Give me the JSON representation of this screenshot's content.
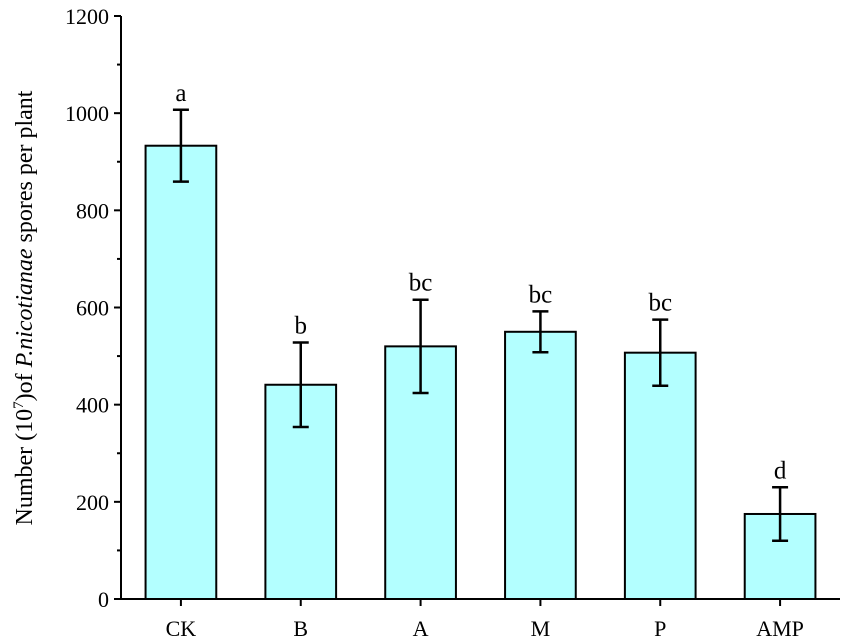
{
  "chart_data": {
    "type": "bar",
    "categories": [
      "CK",
      "B",
      "A",
      "M",
      "P",
      "AMP"
    ],
    "values": [
      933,
      441,
      520,
      550,
      507,
      175
    ],
    "errors": [
      74,
      87,
      96,
      42,
      68,
      55
    ],
    "significance": [
      "a",
      "b",
      "bc",
      "bc",
      "bc",
      "d"
    ],
    "ylabel": {
      "prefix": "Number (10",
      "superscript": "7",
      "middle": ")of ",
      "italic": "P.nicotianae",
      "suffix": " spores per plant"
    },
    "yticks": [
      "0",
      "200",
      "400",
      "600",
      "800",
      "1000",
      "1200"
    ],
    "ylim": [
      0,
      1200
    ],
    "bar_color": "#b3ffff",
    "grid": false,
    "legend": "none"
  }
}
